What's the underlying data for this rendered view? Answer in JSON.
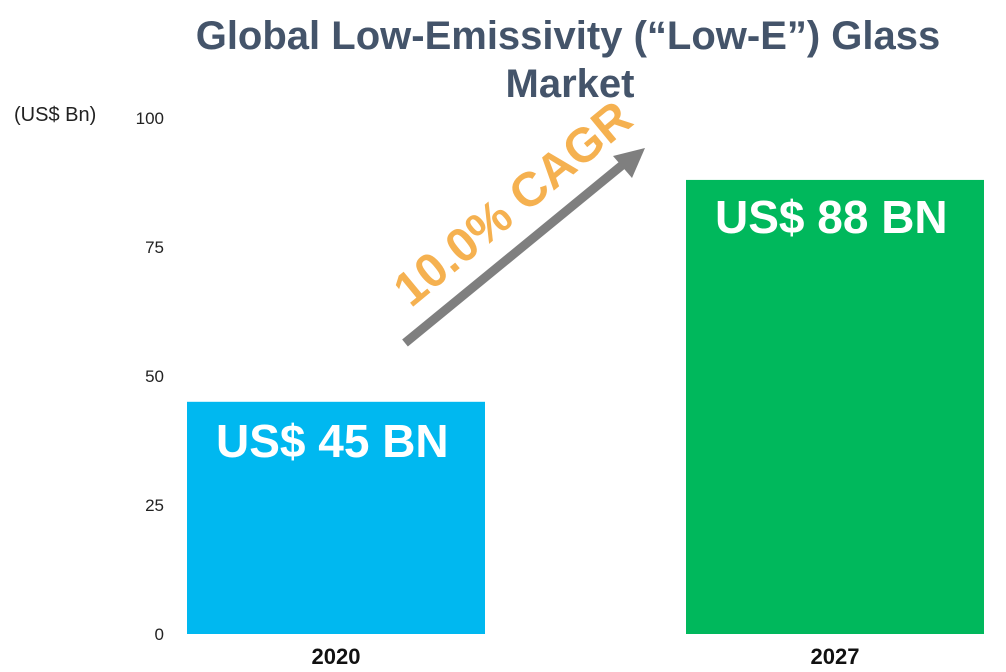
{
  "chart_data": {
    "type": "bar",
    "title_line1": "Global Low-Emissivity (“Low-E”) Glass",
    "title_line2": "Market",
    "unit_label": "(US$ Bn)",
    "categories": [
      "2020",
      "2027"
    ],
    "values": [
      45,
      88
    ],
    "bar_labels": [
      "US$ 45 BN",
      "US$ 88 BN"
    ],
    "bar_colors": [
      "#00b8f0",
      "#00b85c"
    ],
    "yticks": [
      0,
      25,
      50,
      75,
      100
    ],
    "ylim": [
      0,
      100
    ],
    "grid": false,
    "annotation": {
      "text": "10.0% CAGR",
      "color": "#f5b150",
      "arrow_color": "#7f7f7f"
    }
  }
}
